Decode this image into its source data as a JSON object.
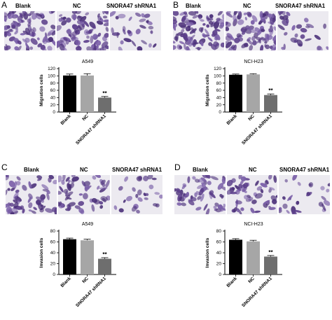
{
  "panels": [
    {
      "letter": "A",
      "image_labels": [
        "Blank",
        "NC",
        "SNORA47 shRNA1"
      ],
      "chart_data": {
        "type": "bar",
        "title": "A549",
        "ylabel": "Migration cells",
        "categories": [
          "Blank",
          "NC",
          "SNORA47 shRNA1"
        ],
        "values": [
          101,
          101,
          40
        ],
        "errors": [
          4,
          5,
          3
        ],
        "significance": [
          "",
          "",
          "**"
        ],
        "ylim": [
          0,
          120
        ],
        "yticks": [
          0,
          20,
          40,
          60,
          80,
          100,
          120
        ],
        "colors": [
          "#000000",
          "#a6a6a6",
          "#6e6e6e"
        ]
      }
    },
    {
      "letter": "B",
      "image_labels": [
        "Blank",
        "NC",
        "SNORA47 shRNA1"
      ],
      "chart_data": {
        "type": "bar",
        "title": "NCI-H23",
        "ylabel": "Migration cells",
        "categories": [
          "Blank",
          "NC",
          "SNORA47 shRNA1"
        ],
        "values": [
          103,
          104,
          47
        ],
        "errors": [
          2,
          2,
          3
        ],
        "significance": [
          "",
          "",
          "**"
        ],
        "ylim": [
          0,
          120
        ],
        "yticks": [
          0,
          20,
          40,
          60,
          80,
          100,
          120
        ],
        "colors": [
          "#000000",
          "#a6a6a6",
          "#6e6e6e"
        ]
      }
    },
    {
      "letter": "C",
      "image_labels": [
        "Blank",
        "NC",
        "SNORA47 shRNA1"
      ],
      "chart_data": {
        "type": "bar",
        "title": "A549",
        "ylabel": "Invasion cells",
        "categories": [
          "Blank",
          "NC",
          "SNORA47 shRNA1"
        ],
        "values": [
          65,
          63,
          29
        ],
        "errors": [
          2,
          2,
          2
        ],
        "significance": [
          "",
          "",
          "**"
        ],
        "ylim": [
          0,
          80
        ],
        "yticks": [
          0,
          20,
          40,
          60,
          80
        ],
        "colors": [
          "#000000",
          "#a6a6a6",
          "#6e6e6e"
        ]
      }
    },
    {
      "letter": "D",
      "image_labels": [
        "Blank",
        "NC",
        "SNORA47 shRNA1"
      ],
      "chart_data": {
        "type": "bar",
        "title": "NCI-H23",
        "ylabel": "Invasion cells",
        "categories": [
          "Blank",
          "NC",
          "SNORA47 shRNA1"
        ],
        "values": [
          64,
          61,
          33
        ],
        "errors": [
          2,
          2,
          2
        ],
        "significance": [
          "",
          "",
          "**"
        ],
        "ylim": [
          0,
          80
        ],
        "yticks": [
          0,
          20,
          40,
          60,
          80
        ],
        "colors": [
          "#000000",
          "#a6a6a6",
          "#6e6e6e"
        ]
      }
    }
  ]
}
